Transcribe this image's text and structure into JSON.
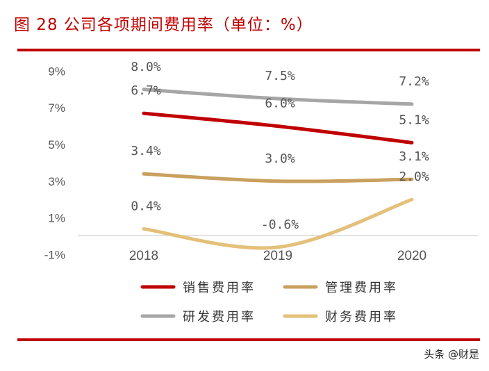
{
  "title": "图 28 公司各项期间费用率（单位：%）",
  "watermark": "头条 @财是",
  "chart_data": {
    "type": "line",
    "title": "图 28 公司各项期间费用率（单位：%）",
    "categories": [
      "2018",
      "2019",
      "2020"
    ],
    "yticks": [
      "9%",
      "7%",
      "5%",
      "3%",
      "1%",
      "-1%"
    ],
    "ytick_values": [
      9,
      7,
      5,
      3,
      1,
      -1
    ],
    "ylim": [
      -1,
      9
    ],
    "grid": false,
    "smooth": true,
    "legend_position": "bottom",
    "series": [
      {
        "name": "销售费用率",
        "color": "#C00000",
        "values": [
          6.7,
          6.0,
          5.1
        ],
        "labels": [
          "6.7%",
          "6.0%",
          "5.1%"
        ]
      },
      {
        "name": "管理费用率",
        "color": "#C9A05F",
        "values": [
          3.4,
          3.0,
          3.1
        ],
        "labels": [
          "3.4%",
          "3.0%",
          "3.1%"
        ]
      },
      {
        "name": "研发费用率",
        "color": "#A6A6A6",
        "values": [
          8.0,
          7.5,
          7.2
        ],
        "labels": [
          "8.0%",
          "7.5%",
          "7.2%"
        ]
      },
      {
        "name": "财务费用率",
        "color": "#E5C07A",
        "values": [
          0.4,
          -0.6,
          2.0
        ],
        "labels": [
          "0.4%",
          "-0.6%",
          "2.0%"
        ]
      }
    ]
  }
}
